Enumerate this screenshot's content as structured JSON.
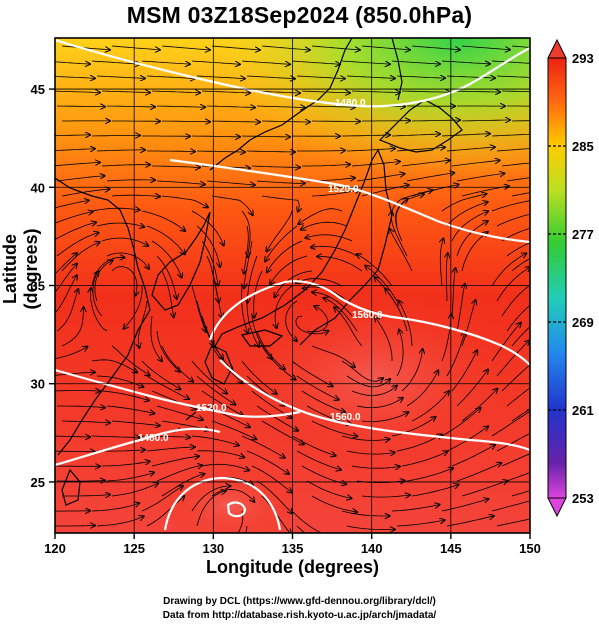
{
  "title": "MSM 03Z18Sep2024 (850.0hPa)",
  "xlabel": "Longitude (degrees)",
  "ylabel": "Latitude  (degrees)",
  "footer": {
    "line1": "Drawing by DCL (https://www.gfd-dennou.org/library/dcl/)",
    "line2": "Data from http://database.rish.kyoto-u.ac.jp/arch/jmadata/"
  },
  "map": {
    "lon_range": [
      120,
      150
    ],
    "lat_range": [
      22.4,
      47.6
    ],
    "x_ticks": [
      "120",
      "125",
      "130",
      "135",
      "140",
      "145",
      "150"
    ],
    "y_ticks": [
      "25",
      "30",
      "35",
      "40",
      "45"
    ],
    "contour_labels": [
      "1480.0",
      "1520.0",
      "1560.0",
      "1520.0",
      "1480.0",
      "1560.0"
    ],
    "grid": true
  },
  "colorbar": {
    "min": 253,
    "max": 293,
    "labels": [
      "293",
      "285",
      "277",
      "269",
      "261",
      "253"
    ],
    "colors": [
      "#dd44dd",
      "#4422aa",
      "#2255dd",
      "#22bbcc",
      "#33cc33",
      "#ccee22",
      "#ffcc00",
      "#ff7700",
      "#ee2211"
    ]
  }
}
